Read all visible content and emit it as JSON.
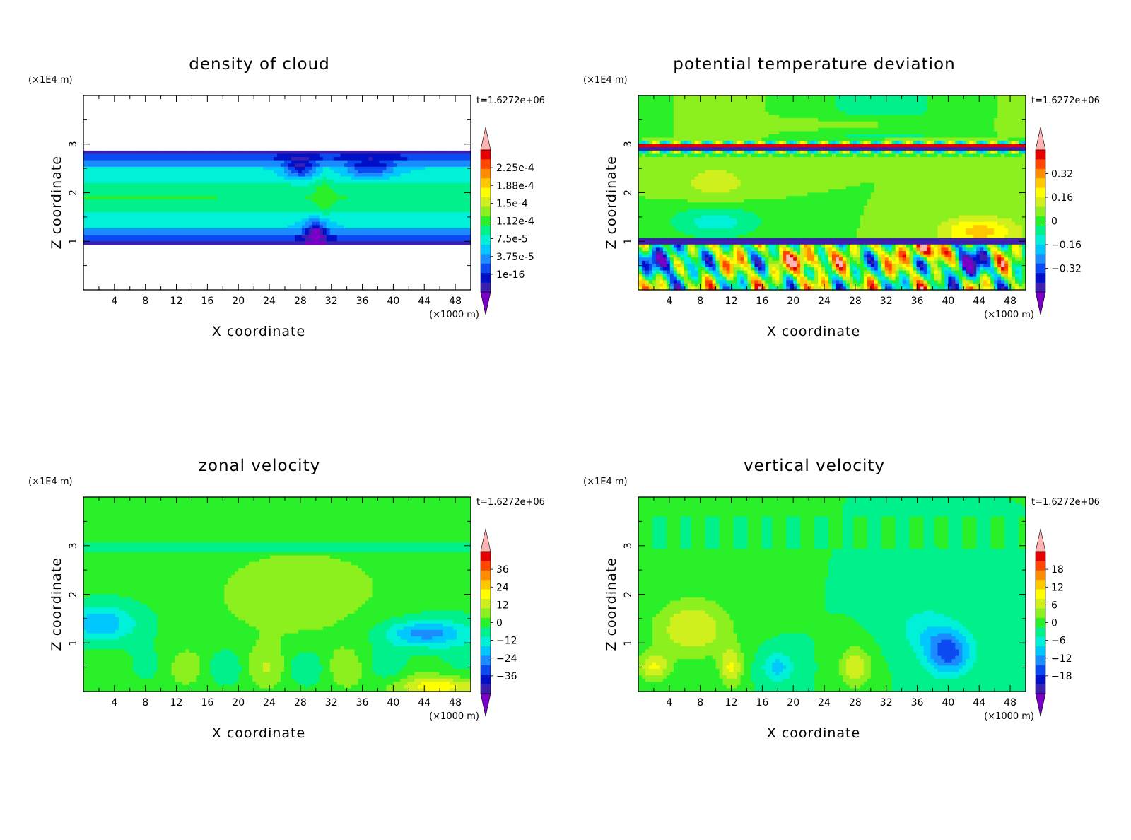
{
  "chart_data": [
    {
      "type": "heatmap",
      "title": "density of cloud",
      "xlabel": "X coordinate",
      "ylabel": "Z coordinate",
      "x_unit": "(×1000 m)",
      "y_unit": "(×1E4 m)",
      "time_label": "t=1.6272e+06",
      "xlim": [
        0,
        50
      ],
      "ylim": [
        0,
        4
      ],
      "x_ticks": [
        4,
        8,
        12,
        16,
        20,
        24,
        28,
        32,
        36,
        40,
        44,
        48
      ],
      "y_ticks": [
        1,
        2,
        3
      ],
      "colorbar_labels": [
        {
          "label": "2.25e-4",
          "value": 0.000225
        },
        {
          "label": "1.88e-4",
          "value": 0.000188
        },
        {
          "label": "1.5e-4",
          "value": 0.00015
        },
        {
          "label": "1.12e-4",
          "value": 0.000112
        },
        {
          "label": "7.5e-5",
          "value": 7.5e-05
        },
        {
          "label": "3.75e-5",
          "value": 3.75e-05
        },
        {
          "label": "1e-16",
          "value": 1e-16
        }
      ],
      "field_kind": "cloud"
    },
    {
      "type": "heatmap",
      "title": "potential temperature deviation",
      "xlabel": "X coordinate",
      "ylabel": "Z coordinate",
      "x_unit": "(×1000 m)",
      "y_unit": "(×1E4 m)",
      "time_label": "t=1.6272e+06",
      "xlim": [
        0,
        50
      ],
      "ylim": [
        0,
        4
      ],
      "x_ticks": [
        4,
        8,
        12,
        16,
        20,
        24,
        28,
        32,
        36,
        40,
        44,
        48
      ],
      "y_ticks": [
        1,
        2,
        3
      ],
      "colorbar_labels": [
        {
          "label": "0.32",
          "value": 0.32
        },
        {
          "label": "0.16",
          "value": 0.16
        },
        {
          "label": "0",
          "value": 0
        },
        {
          "label": "−0.16",
          "value": -0.16
        },
        {
          "label": "−0.32",
          "value": -0.32
        }
      ],
      "field_kind": "theta"
    },
    {
      "type": "heatmap",
      "title": "zonal velocity",
      "xlabel": "X coordinate",
      "ylabel": "Z coordinate",
      "x_unit": "(×1000 m)",
      "y_unit": "(×1E4 m)",
      "time_label": "t=1.6272e+06",
      "xlim": [
        0,
        50
      ],
      "ylim": [
        0,
        4
      ],
      "x_ticks": [
        4,
        8,
        12,
        16,
        20,
        24,
        28,
        32,
        36,
        40,
        44,
        48
      ],
      "y_ticks": [
        1,
        2,
        3
      ],
      "colorbar_labels": [
        {
          "label": "36",
          "value": 36
        },
        {
          "label": "24",
          "value": 24
        },
        {
          "label": "12",
          "value": 12
        },
        {
          "label": "0",
          "value": 0
        },
        {
          "label": "−12",
          "value": -12
        },
        {
          "label": "−24",
          "value": -24
        },
        {
          "label": "−36",
          "value": -36
        }
      ],
      "field_kind": "zonal"
    },
    {
      "type": "heatmap",
      "title": "vertical velocity",
      "xlabel": "X coordinate",
      "ylabel": "Z coordinate",
      "x_unit": "(×1000 m)",
      "y_unit": "(×1E4 m)",
      "time_label": "t=1.6272e+06",
      "xlim": [
        0,
        50
      ],
      "ylim": [
        0,
        4
      ],
      "x_ticks": [
        4,
        8,
        12,
        16,
        20,
        24,
        28,
        32,
        36,
        40,
        44,
        48
      ],
      "y_ticks": [
        1,
        2,
        3
      ],
      "colorbar_labels": [
        {
          "label": "18",
          "value": 18
        },
        {
          "label": "12",
          "value": 12
        },
        {
          "label": "6",
          "value": 6
        },
        {
          "label": "0",
          "value": 0
        },
        {
          "label": "−6",
          "value": -6
        },
        {
          "label": "−12",
          "value": -12
        },
        {
          "label": "−18",
          "value": -18
        }
      ],
      "field_kind": "vertical"
    }
  ],
  "colors": {
    "colormap": [
      "#7a00c8",
      "#3d1fb0",
      "#0010c8",
      "#0a4af0",
      "#1a8cff",
      "#00c8ff",
      "#00f0d8",
      "#00f08c",
      "#2af02a",
      "#8cf01e",
      "#d0f01e",
      "#ffff00",
      "#ffc800",
      "#ff8c00",
      "#ff4600",
      "#e60000",
      "#ffb4b4"
    ]
  }
}
